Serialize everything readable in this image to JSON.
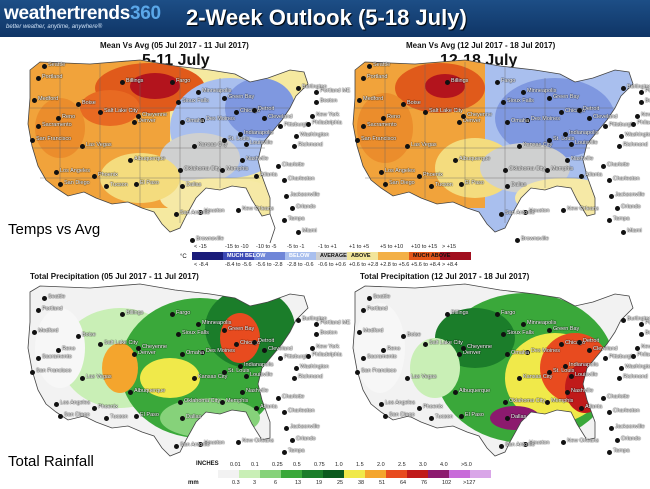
{
  "brand": {
    "name_text": "weathertrends",
    "name_num": "360",
    "tagline": "better weather, anytime, anywhere®"
  },
  "title": "2-Week Outlook (5-18 July)",
  "temp_maps": [
    {
      "title": "Mean Vs Avg (05 Jul 2017 - 11 Jul 2017)",
      "week": "5-11 July"
    },
    {
      "title": "Mean Vs Avg (12 Jul 2017 - 18 Jul 2017)",
      "week": "12-18 July"
    }
  ],
  "precip_maps": [
    {
      "title": "Total Precipitation (05 Jul 2017 - 11 Jul 2017)"
    },
    {
      "title": "Total Precipitation (12 Jul 2017 - 18 Jul 2017)"
    }
  ],
  "labels": {
    "temps": "Temps vs Avg",
    "rain": "Total Rainfall"
  },
  "cities": [
    "Seattle",
    "Portland",
    "Medford",
    "Reno",
    "Sacramento",
    "San Francisco",
    "Los Angeles",
    "San Diego",
    "Las Vegas",
    "Salt Lake City",
    "Denver",
    "Phoenix",
    "Tucson",
    "El Paso",
    "Albuquerque",
    "Kansas City",
    "Dallas",
    "Oklahoma City",
    "Minneapolis",
    "Des Moines",
    "St. Louis",
    "Chicago",
    "Green Bay",
    "Detroit",
    "Cleveland",
    "Pittsburgh",
    "Indianapolis",
    "Nashville",
    "Atlanta",
    "Charlotte",
    "Charleston",
    "Jacksonville",
    "Orlando",
    "Tampa",
    "Miami",
    "New Orleans",
    "Houston",
    "San Antonio",
    "Brownsville",
    "Memphis",
    "Louisville",
    "Richmond",
    "Washington",
    "Philadelphia",
    "New York",
    "Boston",
    "Burlington",
    "Portland ME",
    "Billings",
    "Boise",
    "Omaha",
    "Sioux Falls",
    "Fargo",
    "Cheyenne"
  ],
  "temp_legend": {
    "unit": "°C",
    "top": [
      "< -15",
      "-15 to -10",
      "-10 to -5",
      "-5 to -1",
      "-1 to +1",
      "+1 to +5",
      "+5 to +10",
      "+10 to +15",
      "> +15"
    ],
    "bottom": [
      "< -8.4",
      "-8.4 to -5.6",
      "-5.6 to -2.8",
      "-2.8 to -0.6",
      "-0.6 to +0.6",
      "+0.6 to +2.8",
      "+2.8 to +5.6",
      "+5.6 to +8.4",
      "> +8.4"
    ],
    "names": [
      "MUCH BELOW",
      "BELOW",
      "AVERAGE",
      "ABOVE",
      "MUCH ABOVE"
    ],
    "colors": [
      "#1a1c7a",
      "#3b48b5",
      "#6f86d8",
      "#a9bfee",
      "#cfcfcf",
      "#f2e59a",
      "#f3b046",
      "#e3561a",
      "#a10f1f"
    ]
  },
  "precip_legend": {
    "inches_label": "INCHES",
    "mm_label": "mm",
    "inches": [
      "0.01",
      "0.1",
      "0.25",
      "0.5",
      "0.75",
      "1.0",
      "1.5",
      "2.0",
      "2.5",
      "3.0",
      "4.0",
      ">5.0"
    ],
    "mm": [
      "0.3",
      "3",
      "6",
      "13",
      "19",
      "25",
      "38",
      "51",
      "64",
      "76",
      "102",
      ">127"
    ],
    "colors": [
      "#f2f2f2",
      "#c9efb6",
      "#86d27a",
      "#3aa83a",
      "#1b7d2a",
      "#0b5a1e",
      "#f0e94a",
      "#f4a52d",
      "#e84b1f",
      "#c01a1a",
      "#8c1a6e",
      "#c86bd9",
      "#d9a6e8"
    ]
  },
  "colors": {
    "header": "#1d4e86",
    "water": "#ffffff"
  }
}
